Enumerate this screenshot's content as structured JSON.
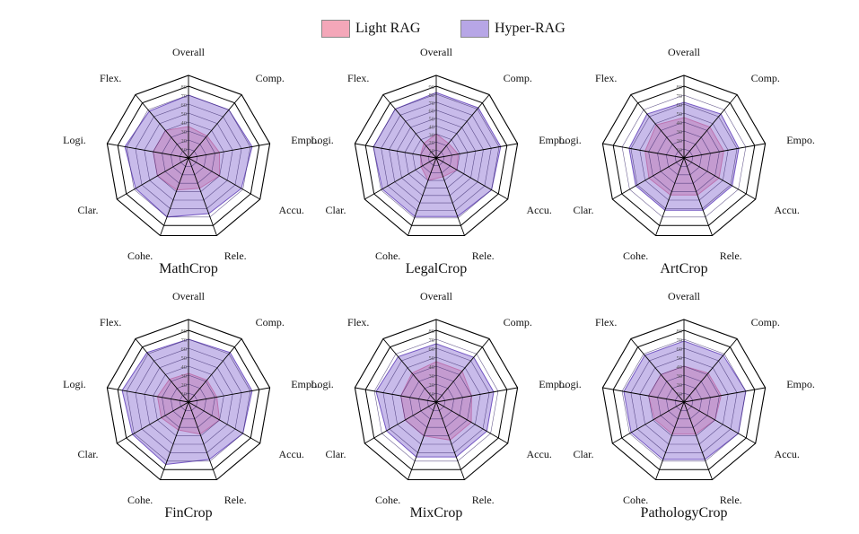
{
  "legend": {
    "items": [
      {
        "label": "Light RAG",
        "color": "#f4a7b9"
      },
      {
        "label": "Hyper-RAG",
        "color": "#b7a6e6"
      }
    ]
  },
  "style": {
    "light_fill": "#f08aa0",
    "light_stroke": "#e4607f",
    "hyper_fill": "#9b83d9",
    "hyper_stroke": "#7457c2",
    "grid_outer": "#000000",
    "grid_inner": "#3a2a6b"
  },
  "chart_data": [
    {
      "type": "radar",
      "title": "MathCrop",
      "range": [
        0,
        80
      ],
      "ticks": [
        "0",
        "10",
        "20",
        "30",
        "40",
        "50",
        "60",
        "70",
        "80"
      ],
      "axes": [
        "Overall",
        "Comp.",
        "Empo.",
        "Accu.",
        "Rele.",
        "Cohe.",
        "Clar.",
        "Logi.",
        "Flex."
      ],
      "series": [
        {
          "name": "Light RAG",
          "values": [
            35,
            32,
            35,
            40,
            36,
            38,
            40,
            40,
            40
          ]
        },
        {
          "name": "Hyper-RAG",
          "values": [
            70,
            70,
            72,
            68,
            66,
            70,
            68,
            72,
            68
          ]
        }
      ]
    },
    {
      "type": "radar",
      "title": "LegalCrop",
      "range": [
        0,
        90
      ],
      "ticks": [
        "0",
        "10",
        "20",
        "30",
        "40",
        "50",
        "60",
        "70",
        "80",
        "90"
      ],
      "axes": [
        "Overall",
        "Comp.",
        "Empo.",
        "Accu.",
        "Rele.",
        "Cohe.",
        "Clar.",
        "Logi.",
        "Flex."
      ],
      "series": [
        {
          "name": "Light RAG",
          "values": [
            30,
            24,
            28,
            30,
            25,
            30,
            22,
            20,
            24
          ]
        },
        {
          "name": "Hyper-RAG",
          "values": [
            82,
            82,
            82,
            80,
            78,
            78,
            78,
            80,
            80
          ]
        }
      ]
    },
    {
      "type": "radar",
      "title": "ArtCrop",
      "range": [
        0,
        80
      ],
      "ticks": [
        "0",
        "10",
        "20",
        "30",
        "40",
        "50",
        "60",
        "70",
        "80"
      ],
      "axes": [
        "Overall",
        "Comp.",
        "Empo.",
        "Accu.",
        "Rele.",
        "Cohe.",
        "Clar.",
        "Logi.",
        "Flex."
      ],
      "series": [
        {
          "name": "Light RAG",
          "values": [
            45,
            45,
            45,
            45,
            44,
            44,
            45,
            44,
            48
          ]
        },
        {
          "name": "Hyper-RAG",
          "values": [
            62,
            64,
            62,
            62,
            62,
            62,
            62,
            62,
            64
          ]
        }
      ]
    },
    {
      "type": "radar",
      "title": "FinCrop",
      "range": [
        0,
        80
      ],
      "ticks": [
        "0",
        "10",
        "20",
        "30",
        "40",
        "50",
        "60",
        "70",
        "80"
      ],
      "axes": [
        "Overall",
        "Comp.",
        "Empo.",
        "Accu.",
        "Rele.",
        "Cohe.",
        "Clar.",
        "Logi.",
        "Flex."
      ],
      "series": [
        {
          "name": "Light RAG",
          "values": [
            32,
            32,
            32,
            40,
            38,
            33,
            35,
            35,
            33
          ]
        },
        {
          "name": "Hyper-RAG",
          "values": [
            70,
            72,
            72,
            70,
            68,
            74,
            72,
            75,
            72
          ]
        }
      ]
    },
    {
      "type": "radar",
      "title": "MixCrop",
      "range": [
        0,
        80
      ],
      "ticks": [
        "0",
        "10",
        "20",
        "30",
        "40",
        "50",
        "60",
        "70",
        "80"
      ],
      "axes": [
        "Overall",
        "Comp.",
        "Empo.",
        "Accu.",
        "Rele.",
        "Cohe.",
        "Clar.",
        "Logi.",
        "Flex."
      ],
      "series": [
        {
          "name": "Light RAG",
          "values": [
            45,
            45,
            40,
            45,
            45,
            40,
            40,
            40,
            42
          ]
        },
        {
          "name": "Hyper-RAG",
          "values": [
            65,
            65,
            65,
            65,
            65,
            65,
            64,
            68,
            66
          ]
        }
      ]
    },
    {
      "type": "radar",
      "title": "PathologyCrop",
      "range": [
        0,
        80
      ],
      "ticks": [
        "0",
        "10",
        "20",
        "30",
        "40",
        "50",
        "60",
        "70",
        "80"
      ],
      "axes": [
        "Overall",
        "Comp.",
        "Empo.",
        "Accu.",
        "Rele.",
        "Cohe.",
        "Clar.",
        "Logi.",
        "Flex."
      ],
      "series": [
        {
          "name": "Light RAG",
          "values": [
            40,
            42,
            42,
            40,
            38,
            38,
            38,
            40,
            40
          ]
        },
        {
          "name": "Hyper-RAG",
          "values": [
            68,
            68,
            70,
            70,
            68,
            68,
            68,
            68,
            68
          ]
        }
      ]
    }
  ]
}
